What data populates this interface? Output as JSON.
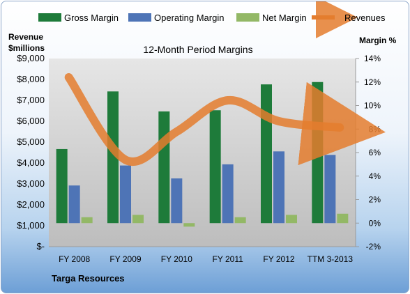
{
  "chart_data": {
    "type": "bar",
    "title": "12-Month Period Margins",
    "company": "Targa Resources",
    "left_axis_label": [
      "Revenue",
      "$millions"
    ],
    "right_axis_label": "Margin %",
    "categories": [
      "FY 2008",
      "FY 2009",
      "FY 2010",
      "FY 2011",
      "FY 2012",
      "TTM 3-2013"
    ],
    "left_ticks": [
      "$9,000",
      "$8,000",
      "$7,000",
      "$6,000",
      "$5,000",
      "$4,000",
      "$3,000",
      "$2,000",
      "$1,000",
      "$-"
    ],
    "right_ticks": [
      "14%",
      "12%",
      "10%",
      "8%",
      "6%",
      "4%",
      "2%",
      "0%",
      "-2%"
    ],
    "right_ylim": [
      -2,
      14
    ],
    "left_ylim": [
      0,
      9000
    ],
    "series": [
      {
        "name": "Gross Margin",
        "color": "#1e7b3a",
        "values": [
          6.3,
          11.2,
          9.5,
          9.6,
          11.8,
          12.0
        ]
      },
      {
        "name": "Operating Margin",
        "color": "#4e74b6",
        "values": [
          3.2,
          4.9,
          3.8,
          5.0,
          6.1,
          5.8
        ]
      },
      {
        "name": "Net Margin",
        "color": "#93b866",
        "values": [
          0.5,
          0.7,
          -0.3,
          0.5,
          0.7,
          0.8
        ]
      }
    ],
    "line_series": {
      "name": "Revenues",
      "color": "#e47d2e",
      "values": [
        8100,
        4150,
        5500,
        7000,
        6000,
        5700
      ]
    },
    "grid": false,
    "legend": "top"
  }
}
